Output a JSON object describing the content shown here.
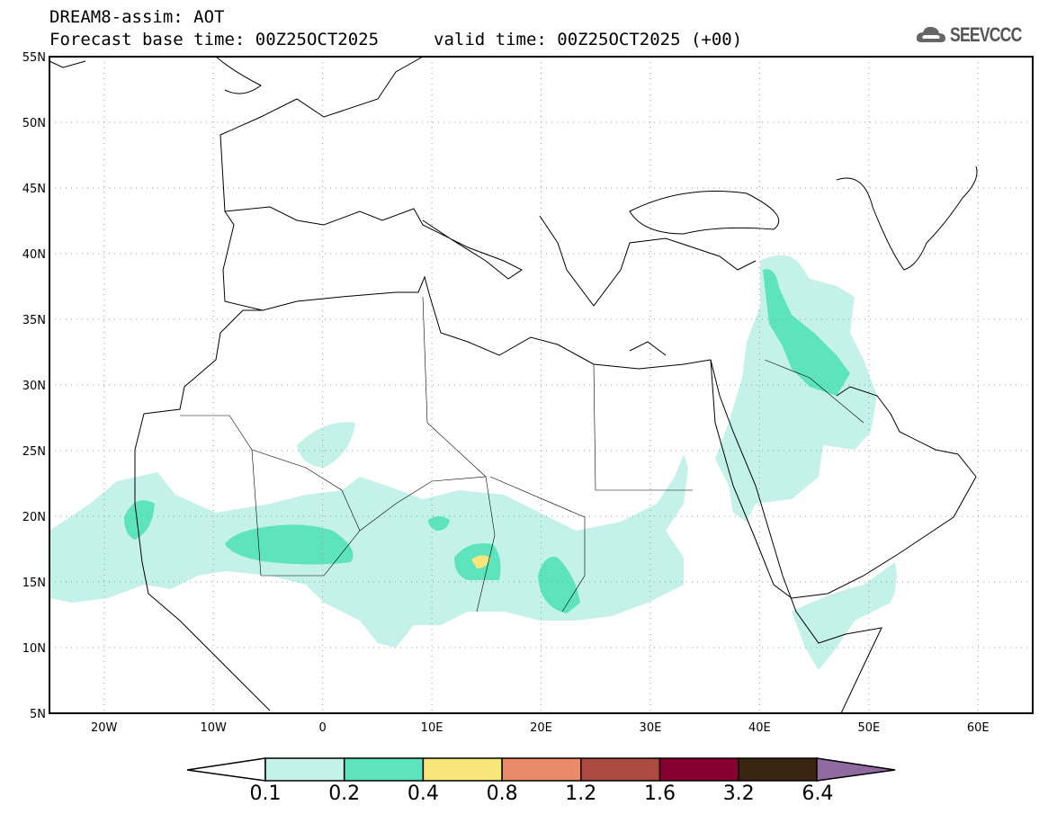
{
  "header": {
    "title": "DREAM8-assim: AOT",
    "base_time": "Forecast base time: 00Z25OCT2025",
    "valid_time": "valid time: 00Z25OCT2025 (+00)",
    "logo": "SEEVCCC"
  },
  "map": {
    "lon_range": [
      -25,
      65
    ],
    "lat_range": [
      5,
      55
    ],
    "lat_labels": [
      "55N",
      "50N",
      "45N",
      "40N",
      "35N",
      "30N",
      "25N",
      "20N",
      "15N",
      "10N",
      "5N"
    ],
    "lon_labels": [
      "20W",
      "10W",
      "0",
      "10E",
      "20E",
      "30E",
      "40E",
      "50E",
      "60E"
    ]
  },
  "colorbar": {
    "labels": [
      "0.1",
      "0.2",
      "0.4",
      "0.8",
      "1.2",
      "1.6",
      "3.2",
      "6.4"
    ],
    "colors": [
      "#ffffff",
      "#c4f2ea",
      "#5de3bd",
      "#f8e67a",
      "#ea8a68",
      "#aa4a40",
      "#870030",
      "#3a2412",
      "#8e6aa0"
    ]
  }
}
